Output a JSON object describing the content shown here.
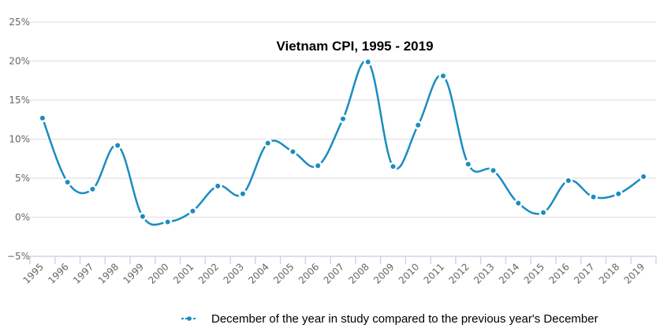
{
  "chart_data": {
    "type": "line",
    "title": "Vietnam CPI, 1995 - 2019",
    "xlabel": "",
    "ylabel": "",
    "categories": [
      "1995",
      "1996",
      "1997",
      "1998",
      "1999",
      "2000",
      "2001",
      "2002",
      "2003",
      "2004",
      "2005",
      "2006",
      "2007",
      "2008",
      "2009",
      "2010",
      "2011",
      "2012",
      "2013",
      "2014",
      "2015",
      "2016",
      "2017",
      "2018",
      "2019"
    ],
    "series": [
      {
        "name": "December of the year in study compared to the previous year's December",
        "color": "#1a8cbf",
        "values": [
          12.7,
          4.5,
          3.6,
          9.2,
          0.1,
          -0.6,
          0.8,
          4.0,
          3.0,
          9.5,
          8.4,
          6.6,
          12.6,
          19.9,
          6.5,
          11.8,
          18.1,
          6.8,
          6.0,
          1.8,
          0.6,
          4.7,
          2.6,
          3.0,
          5.2
        ]
      }
    ],
    "ylim": [
      -5,
      25
    ],
    "yticks": [
      -5,
      0,
      5,
      10,
      15,
      20,
      25
    ],
    "ytick_labels": [
      "−5%",
      "0%",
      "5%",
      "10%",
      "15%",
      "20%",
      "25%"
    ],
    "grid": true,
    "legend": "bottom-right",
    "smooth": true
  }
}
